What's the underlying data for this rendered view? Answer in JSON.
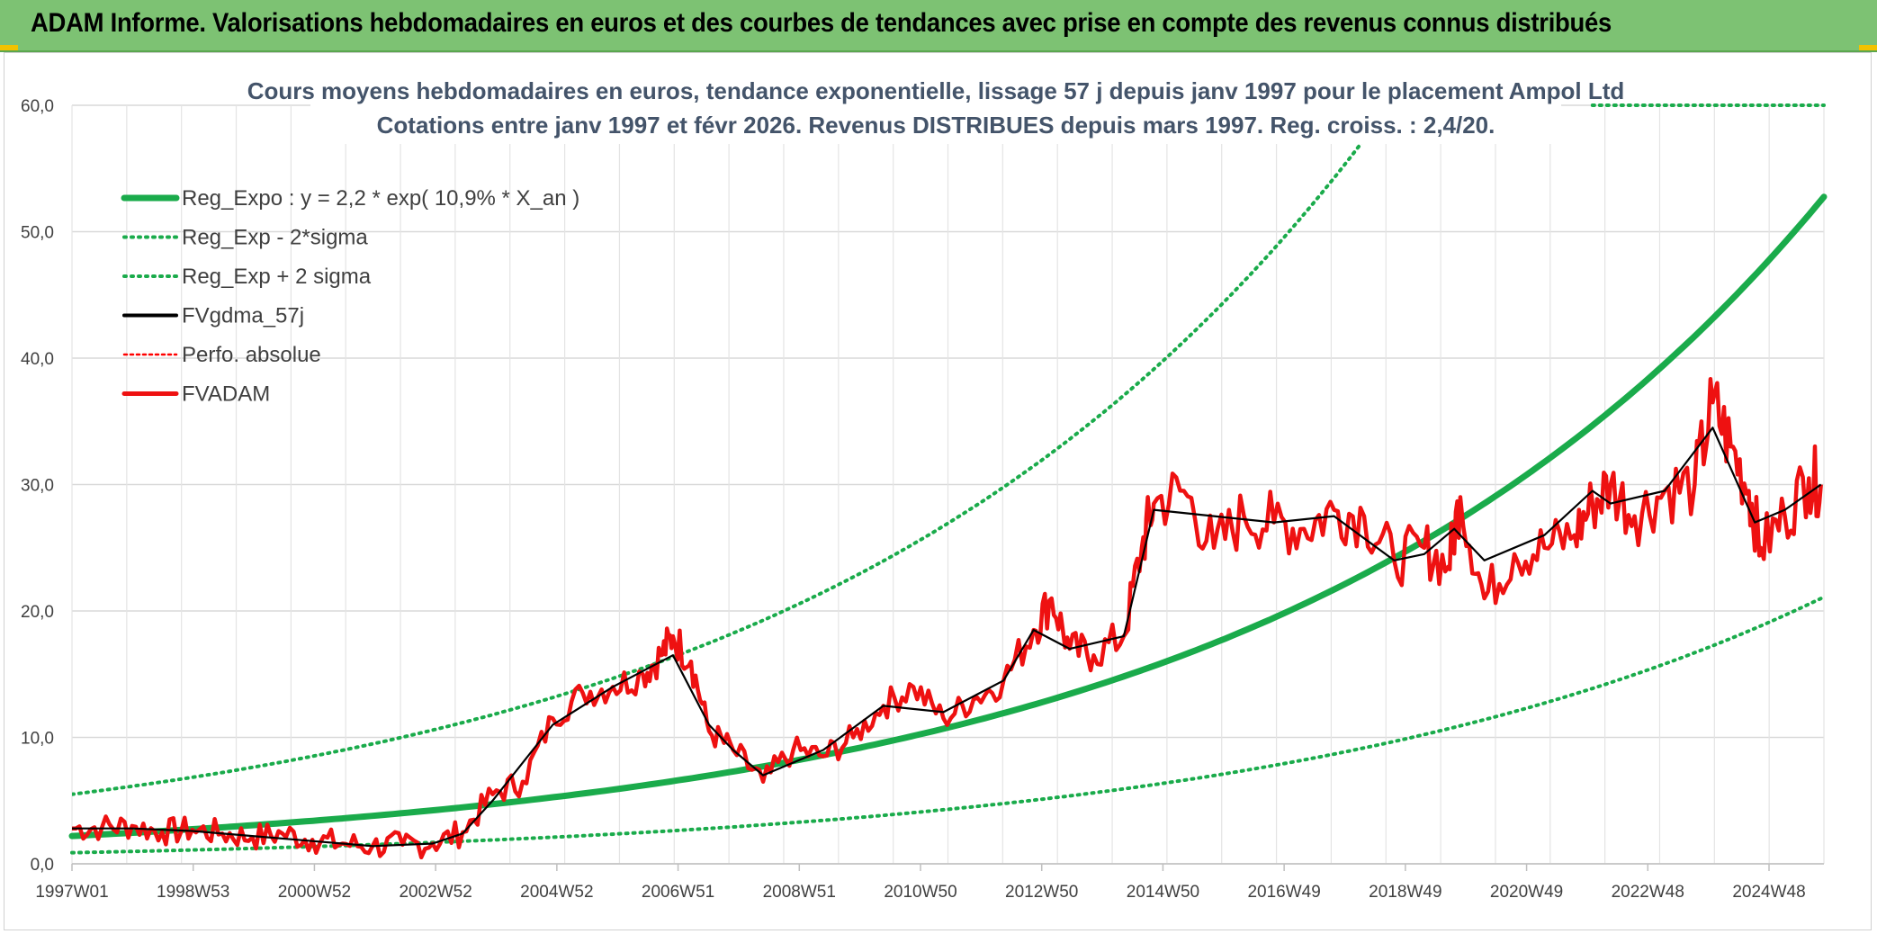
{
  "banner": {
    "title": "ADAM Informe. Valorisations hebdomadaires en euros et des courbes de tendances avec prise en compte des revenus connus distribués"
  },
  "colors": {
    "banner_bg": "#7dc273",
    "reg_expo": "#1aab4b",
    "sigma": "#1aab4b",
    "fvgdma": "#000000",
    "perfo": "#ff0000",
    "fvadam": "#ee1111"
  },
  "chart_data": {
    "type": "line",
    "title": "Cours moyens hebdomadaires en euros, tendance exponentielle, lissage 57 j depuis janv 1997 pour le placement Ampol Ltd",
    "subtitle": "Cotations entre janv 1997 et févr 2026. Revenus DISTRIBUES depuis mars 1997. Reg. croiss. : 2,4/20.",
    "xlabel": "",
    "ylabel": "",
    "x_range": [
      1997.0,
      2026.15
    ],
    "ylim": [
      0,
      60
    ],
    "y_ticks": [
      "0,0",
      "10,0",
      "20,0",
      "30,0",
      "40,0",
      "50,0",
      "60,0"
    ],
    "x_tick_labels": [
      "1997W01",
      "1998W53",
      "2000W52",
      "2002W52",
      "2004W52",
      "2006W51",
      "2008W51",
      "2010W50",
      "2012W50",
      "2014W50",
      "2016W49",
      "2018W49",
      "2020W49",
      "2022W48",
      "2024W48"
    ],
    "grid": true,
    "legend": "top-left",
    "legend_entries": [
      {
        "key": "reg",
        "label": "Reg_Expo : y = 2,2 * exp( 10,9% *  X_an )"
      },
      {
        "key": "lo",
        "label": "Reg_Exp - 2*sigma"
      },
      {
        "key": "hi",
        "label": "Reg_Exp + 2 sigma"
      },
      {
        "key": "gdma",
        "label": "FVgdma_57j"
      },
      {
        "key": "perfo",
        "label": "Perfo. absolue"
      },
      {
        "key": "adam",
        "label": "FVADAM"
      }
    ],
    "regression": {
      "a": 2.2,
      "rate": 0.109,
      "low_factor": 0.4,
      "high_factor": 2.5
    },
    "series": [
      {
        "name": "FVADAM",
        "x": [
          1997.0,
          1997.5,
          1998.0,
          1998.5,
          1999.0,
          1999.5,
          2000.0,
          2000.5,
          2001.0,
          2001.5,
          2002.0,
          2002.5,
          2003.0,
          2003.5,
          2004.0,
          2004.5,
          2005.0,
          2005.5,
          2006.0,
          2006.5,
          2006.8,
          2007.0,
          2007.3,
          2007.6,
          2008.0,
          2008.5,
          2009.0,
          2009.5,
          2010.0,
          2010.5,
          2011.0,
          2011.5,
          2012.0,
          2012.5,
          2013.0,
          2013.3,
          2013.6,
          2014.0,
          2014.5,
          2014.8,
          2015.0,
          2015.5,
          2016.0,
          2016.5,
          2017.0,
          2017.5,
          2018.0,
          2018.5,
          2019.0,
          2019.5,
          2019.9,
          2020.1,
          2020.5,
          2021.0,
          2021.5,
          2022.0,
          2022.3,
          2022.6,
          2023.0,
          2023.5,
          2024.0,
          2024.3,
          2024.6,
          2024.9,
          2025.1,
          2025.5,
          2025.9,
          2026.1
        ],
        "y": [
          2.8,
          2.9,
          3.0,
          2.5,
          2.7,
          2.4,
          2.1,
          2.4,
          1.9,
          1.6,
          1.4,
          1.5,
          1.6,
          2.5,
          5.5,
          6.5,
          11.5,
          13.5,
          14.0,
          15.0,
          16.5,
          18.0,
          16.0,
          10.5,
          9.0,
          6.5,
          9.0,
          8.5,
          10.0,
          12.5,
          14.0,
          11.5,
          13.0,
          14.5,
          18.5,
          21.0,
          17.0,
          16.5,
          18.0,
          25.0,
          28.5,
          29.5,
          25.0,
          27.5,
          27.0,
          26.5,
          28.0,
          27.5,
          24.0,
          25.0,
          23.5,
          29.0,
          21.0,
          24.5,
          25.0,
          26.0,
          28.5,
          30.0,
          27.5,
          29.5,
          30.0,
          36.5,
          33.0,
          29.5,
          25.0,
          27.5,
          30.5,
          30.0
        ]
      },
      {
        "name": "FVgdma_57j",
        "x": [
          1997.0,
          1998.0,
          1999.0,
          2000.0,
          2001.0,
          2002.0,
          2003.0,
          2003.5,
          2004.0,
          2005.0,
          2006.0,
          2007.0,
          2007.6,
          2008.0,
          2008.5,
          2009.5,
          2010.5,
          2011.5,
          2012.5,
          2013.0,
          2013.6,
          2014.5,
          2015.0,
          2016.0,
          2017.0,
          2018.0,
          2019.0,
          2019.5,
          2020.0,
          2020.5,
          2021.5,
          2022.3,
          2022.6,
          2023.5,
          2024.3,
          2025.0,
          2025.5,
          2026.1
        ],
        "y": [
          2.8,
          2.8,
          2.6,
          2.2,
          1.8,
          1.4,
          1.6,
          2.4,
          5.0,
          11.0,
          14.0,
          16.5,
          11.0,
          9.0,
          7.0,
          9.0,
          12.5,
          12.0,
          14.5,
          18.5,
          17.0,
          18.0,
          28.0,
          27.5,
          27.0,
          27.5,
          24.0,
          24.5,
          26.5,
          24.0,
          26.0,
          29.5,
          28.5,
          29.5,
          34.5,
          27.0,
          28.0,
          30.0
        ]
      },
      {
        "name": "Reg_Expo",
        "x": [
          1997.0,
          2001.0,
          2005.0,
          2009.0,
          2013.0,
          2017.0,
          2021.0,
          2023.0,
          2025.0,
          2026.1
        ],
        "y": [
          2.2,
          3.4,
          5.3,
          8.2,
          12.6,
          19.5,
          30.1,
          37.4,
          46.5,
          53.5
        ]
      }
    ]
  }
}
